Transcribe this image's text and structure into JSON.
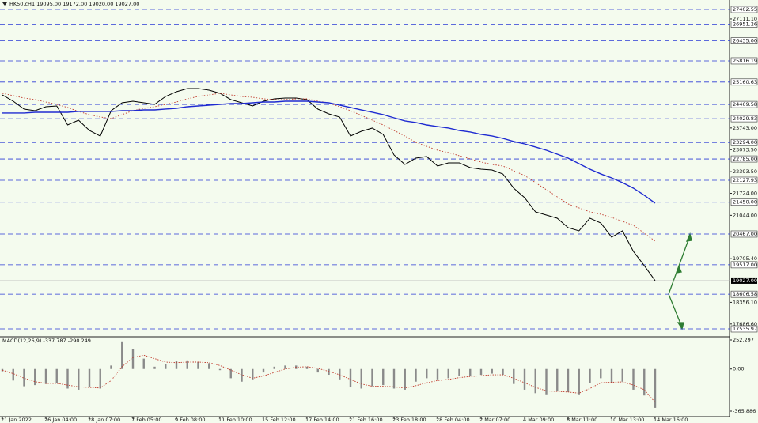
{
  "chart_data": [
    {
      "type": "line",
      "title": "HK50.cH1  19095.00 19172.00 19020.00 19027.00",
      "series": [
        {
          "color": "#000000",
          "values": [
            24765,
            24570,
            24325,
            24277,
            24399,
            24423,
            23837,
            23984,
            23666,
            23495,
            24277,
            24521,
            24570,
            24521,
            24472,
            24716,
            24863,
            24960,
            24960,
            24912,
            24814,
            24619,
            24521,
            24423,
            24570,
            24643,
            24668,
            24668,
            24619,
            24325,
            24179,
            24081,
            23495,
            23642,
            23740,
            23544,
            22910,
            22616,
            22812,
            22861,
            22567,
            22665,
            22665,
            22519,
            22470,
            22445,
            22323,
            21884,
            21591,
            21151,
            21053,
            20956,
            20663,
            20565,
            20956,
            20809,
            20370,
            20565,
            19930,
            19491,
            19027
          ]
        },
        {
          "color": "#c0392b",
          "values": [
            24814,
            24741,
            24668,
            24619,
            24545,
            24472,
            24375,
            24253,
            24155,
            24082,
            24033,
            24155,
            24277,
            24350,
            24399,
            24472,
            24545,
            24643,
            24717,
            24766,
            24814,
            24766,
            24717,
            24692,
            24643,
            24619,
            24619,
            24643,
            24643,
            24570,
            24521,
            24399,
            24277,
            24131,
            23984,
            23837,
            23666,
            23496,
            23300,
            23178,
            23056,
            22983,
            22885,
            22788,
            22690,
            22617,
            22568,
            22421,
            22275,
            22055,
            21835,
            21615,
            21396,
            21274,
            21151,
            21078,
            20980,
            20858,
            20736,
            20492,
            20248
          ]
        },
        {
          "color": "#1f2bd1",
          "values": [
            24204,
            24204,
            24204,
            24228,
            24228,
            24228,
            24228,
            24253,
            24253,
            24253,
            24253,
            24277,
            24277,
            24301,
            24301,
            24326,
            24350,
            24399,
            24423,
            24448,
            24472,
            24497,
            24497,
            24521,
            24545,
            24545,
            24570,
            24570,
            24570,
            24545,
            24521,
            24448,
            24375,
            24301,
            24228,
            24155,
            24057,
            23960,
            23911,
            23837,
            23788,
            23740,
            23666,
            23618,
            23545,
            23496,
            23422,
            23325,
            23251,
            23154,
            23056,
            22934,
            22812,
            22641,
            22470,
            22324,
            22201,
            22055,
            21884,
            21664,
            21420
          ]
        }
      ],
      "ylim": [
        17316,
        27696
      ],
      "yticks": [
        {
          "value": 27111.1,
          "label": "27111.10"
        },
        {
          "value": 23743,
          "label": "23743.00"
        },
        {
          "value": 23073.5,
          "label": "23073.50"
        },
        {
          "value": 22393.5,
          "label": "22393.50"
        },
        {
          "value": 21724,
          "label": "21724.00"
        },
        {
          "value": 21044,
          "label": "21044.00"
        },
        {
          "value": 19705.4,
          "label": "19705.40"
        },
        {
          "value": 18356.1,
          "label": "18356.10"
        },
        {
          "value": 17686.6,
          "label": "17686.60"
        }
      ],
      "levels": [
        {
          "value": 27402.55,
          "label": "27402.55"
        },
        {
          "value": 26951.26,
          "label": "26951.26"
        },
        {
          "value": 26435,
          "label": "26435.00"
        },
        {
          "value": 25816.19,
          "label": "25816.19"
        },
        {
          "value": 25160.63,
          "label": "25160.63"
        },
        {
          "value": 24469.58,
          "label": "24469.58"
        },
        {
          "value": 24029.83,
          "label": "24029.83"
        },
        {
          "value": 23294,
          "label": "23294.00"
        },
        {
          "value": 22785,
          "label": "22785.00"
        },
        {
          "value": 22127.93,
          "label": "22127.93"
        },
        {
          "value": 21450,
          "label": "21450.00"
        },
        {
          "value": 20467,
          "label": "20467.00"
        },
        {
          "value": 19517,
          "label": "19517.00"
        },
        {
          "value": 18606.58,
          "label": "18606.58"
        },
        {
          "value": 17535.97,
          "label": "17535.97"
        }
      ],
      "current": {
        "value": 19027,
        "label": "19027.00"
      }
    },
    {
      "type": "bar",
      "title": "MACD(12,26,9) -337.787 -290.249",
      "categories": [
        "21 Jan 2022",
        null,
        null,
        null,
        "26 Jan 04:00",
        null,
        null,
        null,
        "28 Jan 07:00",
        null,
        null,
        null,
        "7 Feb 05:00",
        null,
        null,
        null,
        "9 Feb 08:00",
        null,
        null,
        null,
        "11 Feb 10:00",
        null,
        null,
        null,
        "15 Feb 12:00",
        null,
        null,
        null,
        "17 Feb 14:00",
        null,
        null,
        null,
        "21 Feb 16:00",
        null,
        null,
        null,
        "23 Feb 18:00",
        null,
        null,
        null,
        "28 Feb 04:00",
        null,
        null,
        null,
        "2 Mar 07:00",
        null,
        null,
        null,
        "4 Mar 09:00",
        null,
        null,
        null,
        "8 Mar 11:00",
        null,
        null,
        null,
        "10 Mar 13:00",
        null,
        null,
        null,
        "14 Mar 16:00"
      ],
      "series": [
        {
          "color": "#8a8a8a",
          "values": [
            -20,
            -100,
            -150,
            -140,
            -130,
            -120,
            -170,
            -180,
            -160,
            -170,
            30,
            240,
            170,
            90,
            20,
            40,
            70,
            75,
            60,
            50,
            -10,
            -80,
            -110,
            -90,
            -30,
            20,
            30,
            30,
            20,
            -30,
            -50,
            -90,
            -160,
            -170,
            -150,
            -140,
            -170,
            -180,
            -110,
            -80,
            -90,
            -80,
            -60,
            -60,
            -50,
            -40,
            -50,
            -130,
            -180,
            -210,
            -220,
            -190,
            -200,
            -220,
            -120,
            -80,
            -120,
            -110,
            -180,
            -230,
            -337.787
          ]
        },
        {
          "color": "#c0392b",
          "values": [
            -10,
            -40,
            -80,
            -110,
            -125,
            -125,
            -140,
            -155,
            -160,
            -165,
            -100,
            20,
            100,
            120,
            90,
            60,
            55,
            60,
            60,
            55,
            30,
            -10,
            -50,
            -80,
            -60,
            -30,
            0,
            15,
            20,
            5,
            -20,
            -50,
            -90,
            -130,
            -150,
            -150,
            -155,
            -165,
            -145,
            -120,
            -100,
            -90,
            -75,
            -65,
            -58,
            -50,
            -50,
            -80,
            -120,
            -160,
            -190,
            -195,
            -200,
            -210,
            -170,
            -120,
            -115,
            -112,
            -140,
            -180,
            -290.249
          ]
        }
      ],
      "ylim": [
        -414,
        273
      ],
      "yticks": [
        252.297,
        {
          "value": 0,
          "label": "0.00"
        },
        -365.886
      ]
    }
  ]
}
